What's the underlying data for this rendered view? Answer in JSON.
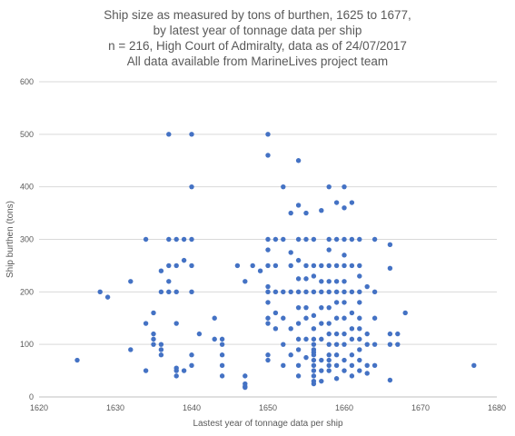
{
  "title_lines": [
    "Ship size as measured by tons of burthen, 1625 to 1677,",
    "by latest year of tonnage data per ship",
    "n = 216, High Court of Admiralty, data as of 24/07/2017",
    "All data available from MarineLives project team"
  ],
  "chart_data": {
    "type": "scatter",
    "xlabel": "Lastest year of tonnage data per ship",
    "ylabel": "Ship burthen (tons)",
    "xlim": [
      1620,
      1680
    ],
    "ylim": [
      0,
      600
    ],
    "xticks": [
      1620,
      1630,
      1640,
      1650,
      1660,
      1670,
      1680
    ],
    "yticks": [
      0,
      100,
      200,
      300,
      400,
      500,
      600
    ],
    "grid": "horizontal",
    "marker_color": "#4472C4",
    "points": [
      [
        1625,
        70
      ],
      [
        1628,
        200
      ],
      [
        1629,
        190
      ],
      [
        1632,
        220
      ],
      [
        1632,
        90
      ],
      [
        1634,
        300
      ],
      [
        1634,
        140
      ],
      [
        1634,
        50
      ],
      [
        1635,
        160
      ],
      [
        1635,
        120
      ],
      [
        1635,
        110
      ],
      [
        1635,
        100
      ],
      [
        1636,
        240
      ],
      [
        1636,
        200
      ],
      [
        1636,
        100
      ],
      [
        1636,
        90
      ],
      [
        1636,
        80
      ],
      [
        1637,
        500
      ],
      [
        1637,
        300
      ],
      [
        1637,
        250
      ],
      [
        1637,
        220
      ],
      [
        1637,
        200
      ],
      [
        1638,
        300
      ],
      [
        1638,
        250
      ],
      [
        1638,
        200
      ],
      [
        1638,
        140
      ],
      [
        1638,
        55
      ],
      [
        1638,
        50
      ],
      [
        1638,
        40
      ],
      [
        1639,
        300
      ],
      [
        1639,
        260
      ],
      [
        1639,
        50
      ],
      [
        1640,
        500
      ],
      [
        1640,
        400
      ],
      [
        1640,
        300
      ],
      [
        1640,
        250
      ],
      [
        1640,
        200
      ],
      [
        1640,
        80
      ],
      [
        1640,
        60
      ],
      [
        1641,
        120
      ],
      [
        1643,
        150
      ],
      [
        1643,
        110
      ],
      [
        1644,
        110
      ],
      [
        1644,
        100
      ],
      [
        1644,
        80
      ],
      [
        1644,
        60
      ],
      [
        1644,
        40
      ],
      [
        1646,
        250
      ],
      [
        1647,
        220
      ],
      [
        1647,
        40
      ],
      [
        1647,
        25
      ],
      [
        1647,
        20
      ],
      [
        1647,
        18
      ],
      [
        1648,
        250
      ],
      [
        1649,
        240
      ],
      [
        1650,
        500
      ],
      [
        1650,
        460
      ],
      [
        1650,
        300
      ],
      [
        1650,
        280
      ],
      [
        1650,
        250
      ],
      [
        1650,
        210
      ],
      [
        1650,
        200
      ],
      [
        1650,
        180
      ],
      [
        1650,
        150
      ],
      [
        1650,
        140
      ],
      [
        1650,
        80
      ],
      [
        1650,
        70
      ],
      [
        1651,
        300
      ],
      [
        1651,
        250
      ],
      [
        1651,
        200
      ],
      [
        1651,
        160
      ],
      [
        1651,
        130
      ],
      [
        1652,
        400
      ],
      [
        1652,
        300
      ],
      [
        1652,
        200
      ],
      [
        1652,
        150
      ],
      [
        1652,
        100
      ],
      [
        1652,
        60
      ],
      [
        1653,
        350
      ],
      [
        1653,
        275
      ],
      [
        1653,
        250
      ],
      [
        1653,
        200
      ],
      [
        1653,
        130
      ],
      [
        1653,
        80
      ],
      [
        1654,
        450
      ],
      [
        1654,
        365
      ],
      [
        1654,
        300
      ],
      [
        1654,
        260
      ],
      [
        1654,
        225
      ],
      [
        1654,
        200
      ],
      [
        1654,
        170
      ],
      [
        1654,
        140
      ],
      [
        1654,
        110
      ],
      [
        1654,
        90
      ],
      [
        1654,
        60
      ],
      [
        1654,
        40
      ],
      [
        1655,
        350
      ],
      [
        1655,
        300
      ],
      [
        1655,
        250
      ],
      [
        1655,
        225
      ],
      [
        1655,
        200
      ],
      [
        1655,
        170
      ],
      [
        1655,
        150
      ],
      [
        1655,
        110
      ],
      [
        1655,
        75
      ],
      [
        1656,
        300
      ],
      [
        1656,
        250
      ],
      [
        1656,
        230
      ],
      [
        1656,
        200
      ],
      [
        1656,
        155
      ],
      [
        1656,
        130
      ],
      [
        1656,
        110
      ],
      [
        1656,
        100
      ],
      [
        1656,
        90
      ],
      [
        1656,
        85
      ],
      [
        1656,
        80
      ],
      [
        1656,
        70
      ],
      [
        1656,
        60
      ],
      [
        1656,
        50
      ],
      [
        1656,
        40
      ],
      [
        1656,
        30
      ],
      [
        1656,
        25
      ],
      [
        1657,
        355
      ],
      [
        1657,
        250
      ],
      [
        1657,
        220
      ],
      [
        1657,
        200
      ],
      [
        1657,
        170
      ],
      [
        1657,
        140
      ],
      [
        1657,
        110
      ],
      [
        1657,
        70
      ],
      [
        1657,
        50
      ],
      [
        1657,
        30
      ],
      [
        1658,
        400
      ],
      [
        1658,
        300
      ],
      [
        1658,
        280
      ],
      [
        1658,
        250
      ],
      [
        1658,
        220
      ],
      [
        1658,
        200
      ],
      [
        1658,
        170
      ],
      [
        1658,
        140
      ],
      [
        1658,
        120
      ],
      [
        1658,
        100
      ],
      [
        1658,
        80
      ],
      [
        1658,
        70
      ],
      [
        1658,
        60
      ],
      [
        1658,
        50
      ],
      [
        1659,
        370
      ],
      [
        1659,
        300
      ],
      [
        1659,
        250
      ],
      [
        1659,
        220
      ],
      [
        1659,
        200
      ],
      [
        1659,
        180
      ],
      [
        1659,
        150
      ],
      [
        1659,
        120
      ],
      [
        1659,
        100
      ],
      [
        1659,
        80
      ],
      [
        1659,
        60
      ],
      [
        1659,
        35
      ],
      [
        1660,
        400
      ],
      [
        1660,
        360
      ],
      [
        1660,
        300
      ],
      [
        1660,
        270
      ],
      [
        1660,
        250
      ],
      [
        1660,
        220
      ],
      [
        1660,
        200
      ],
      [
        1660,
        180
      ],
      [
        1660,
        150
      ],
      [
        1660,
        120
      ],
      [
        1660,
        100
      ],
      [
        1660,
        70
      ],
      [
        1660,
        50
      ],
      [
        1661,
        370
      ],
      [
        1661,
        300
      ],
      [
        1661,
        250
      ],
      [
        1661,
        200
      ],
      [
        1661,
        160
      ],
      [
        1661,
        130
      ],
      [
        1661,
        110
      ],
      [
        1661,
        80
      ],
      [
        1661,
        60
      ],
      [
        1661,
        40
      ],
      [
        1662,
        300
      ],
      [
        1662,
        250
      ],
      [
        1662,
        230
      ],
      [
        1662,
        200
      ],
      [
        1662,
        180
      ],
      [
        1662,
        150
      ],
      [
        1662,
        130
      ],
      [
        1662,
        110
      ],
      [
        1662,
        90
      ],
      [
        1662,
        70
      ],
      [
        1662,
        50
      ],
      [
        1663,
        210
      ],
      [
        1663,
        120
      ],
      [
        1663,
        100
      ],
      [
        1663,
        60
      ],
      [
        1663,
        45
      ],
      [
        1664,
        300
      ],
      [
        1664,
        200
      ],
      [
        1664,
        150
      ],
      [
        1664,
        100
      ],
      [
        1664,
        60
      ],
      [
        1666,
        290
      ],
      [
        1666,
        245
      ],
      [
        1666,
        120
      ],
      [
        1666,
        100
      ],
      [
        1666,
        32
      ],
      [
        1667,
        120
      ],
      [
        1667,
        100
      ],
      [
        1668,
        160
      ],
      [
        1677,
        60
      ]
    ]
  }
}
